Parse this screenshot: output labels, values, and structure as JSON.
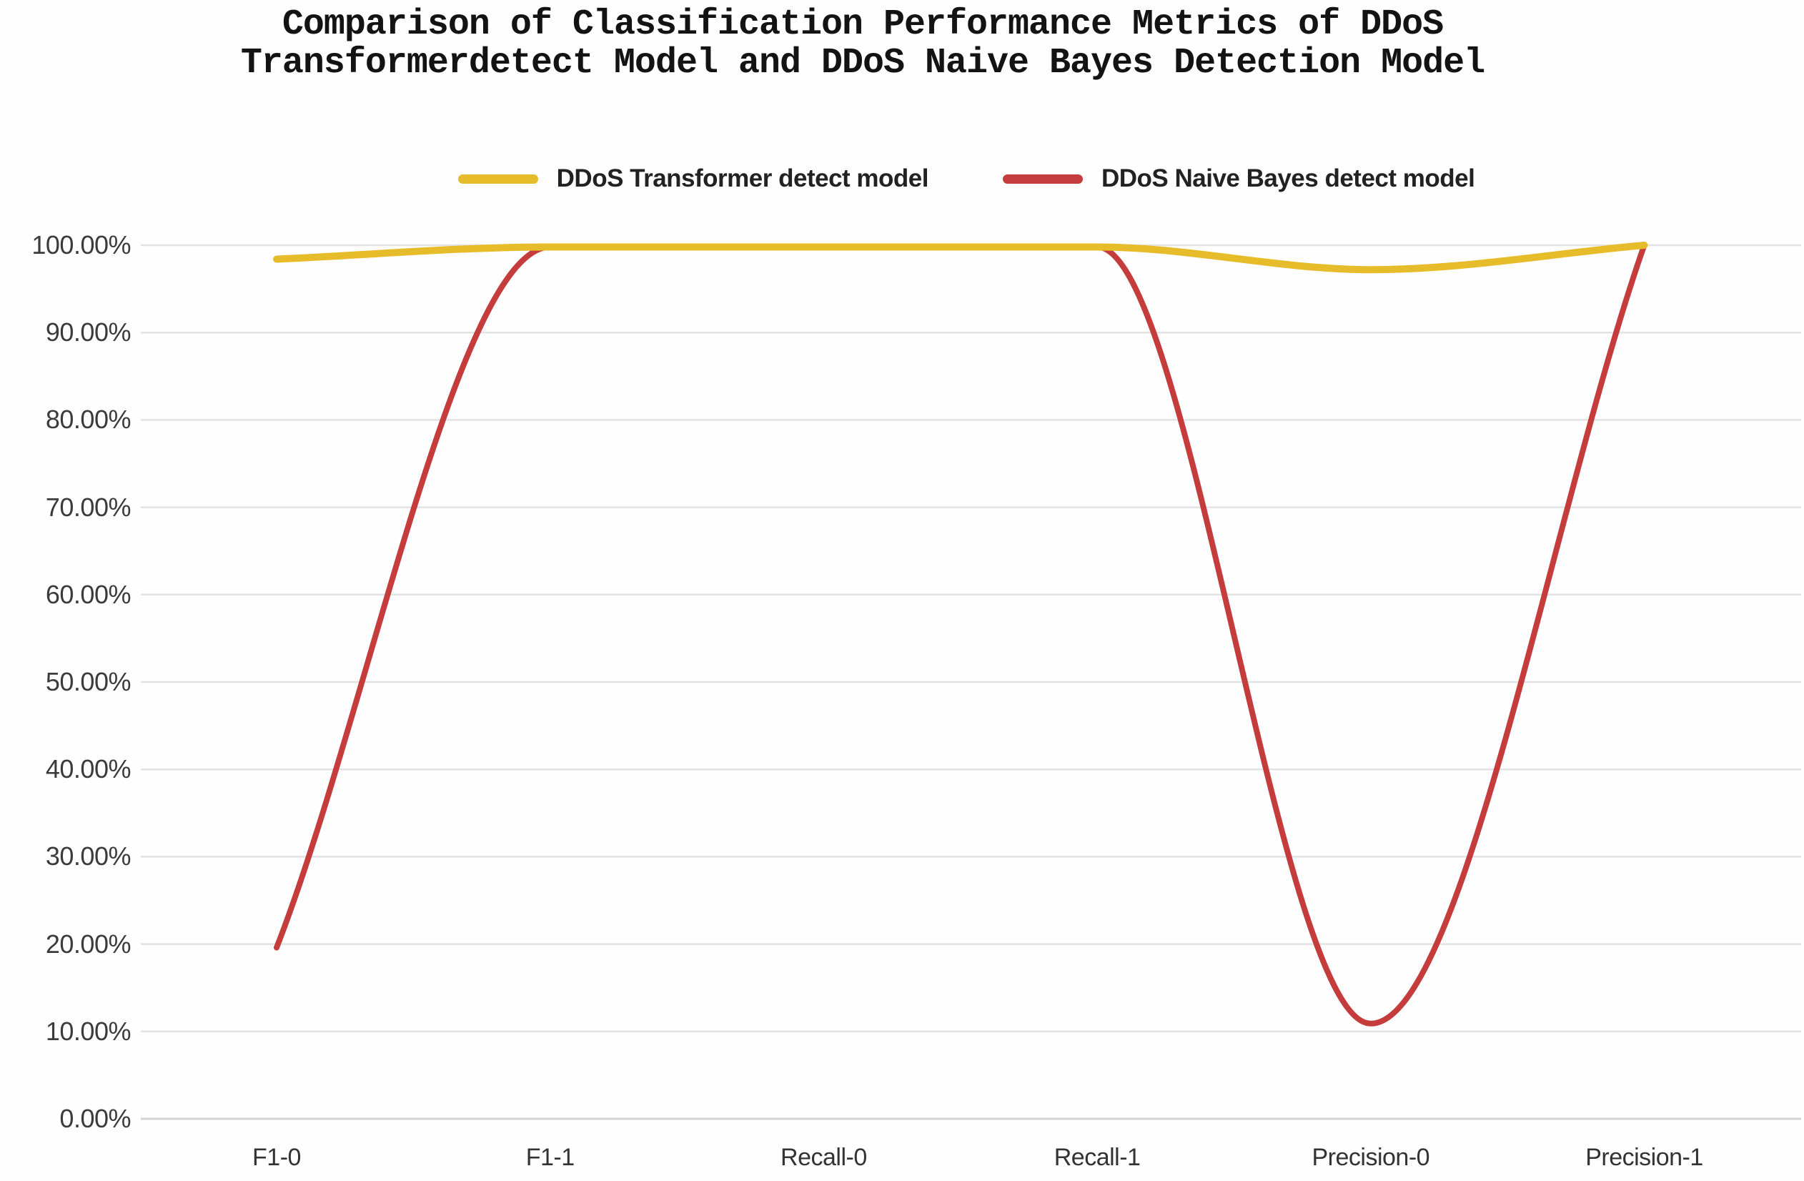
{
  "title": {
    "line1": "Comparison of Classification Performance Metrics of DDoS",
    "line2": "Transformerdetect Model and DDoS Naive Bayes Detection Model"
  },
  "legend": {
    "items": [
      {
        "label": "DDoS Transformer detect model",
        "color": "#E7BC2A"
      },
      {
        "label": "DDoS Naive Bayes detect model",
        "color": "#C43C3B"
      }
    ]
  },
  "chart_data": {
    "type": "line",
    "smooth": true,
    "grid": true,
    "legend_position": "top",
    "categories": [
      "F1-0",
      "F1-1",
      "Recall-0",
      "Recall-1",
      "Precision-0",
      "Precision-1"
    ],
    "series": [
      {
        "name": "DDoS Transformer detect model",
        "color": "#E7BC2A",
        "stroke_width": 10,
        "values": [
          98.4,
          99.8,
          99.8,
          99.8,
          97.2,
          100.0
        ]
      },
      {
        "name": "DDoS Naive Bayes detect model",
        "color": "#C43C3B",
        "stroke_width": 8,
        "values": [
          19.6,
          99.8,
          99.8,
          99.8,
          10.9,
          100.0
        ]
      }
    ],
    "y_ticks": [
      "100.00%",
      "90.00%",
      "80.00%",
      "70.00%",
      "60.00%",
      "50.00%",
      "40.00%",
      "30.00%",
      "20.00%",
      "10.00%",
      "0.00%"
    ],
    "ylim": [
      0,
      100
    ],
    "gridline_color": "#E3E3E3",
    "baseline_color": "#D2D2D2"
  }
}
